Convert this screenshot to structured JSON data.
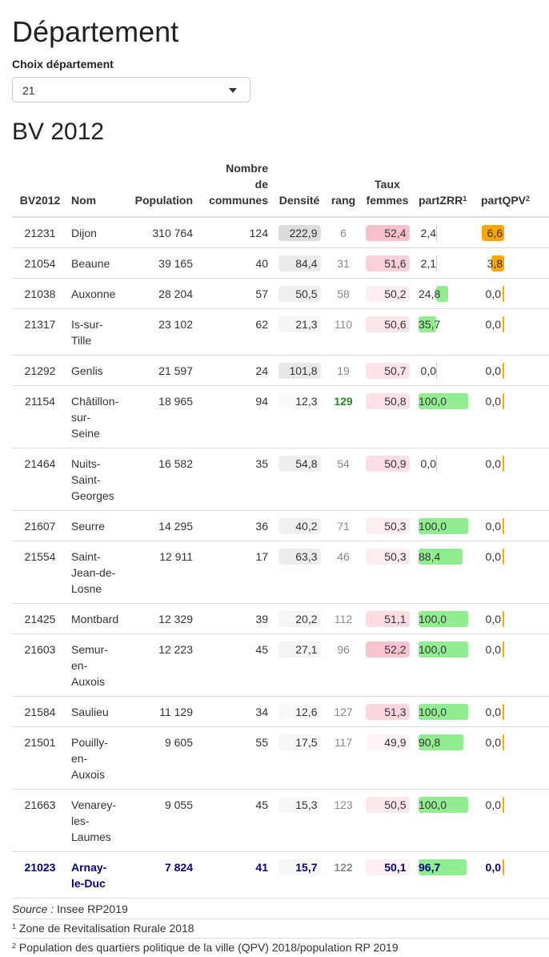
{
  "page_title": "Département",
  "selector": {
    "label": "Choix département",
    "value": "21"
  },
  "section_title": "BV 2012",
  "columns": {
    "bv": "BV2012",
    "nom": "Nom",
    "population": "Population",
    "nb_communes": "Nombre de communes",
    "densite": "Densité",
    "rang": "rang",
    "taux_femmes": "Taux femmes",
    "partZRR": "partZRR",
    "partZRR_sup": "1",
    "partQPV": "partQPV",
    "partQPV_sup": "2"
  },
  "colors": {
    "zrr": "#90EE90",
    "qpv": "#FFA500",
    "dens": "#e0e0e0",
    "fem": "#f8c8d0",
    "last": "#000080",
    "rang_hi": "#228B22"
  },
  "rows": [
    {
      "bv": "21231",
      "nom": "Dijon",
      "population": "310 764",
      "nb": "124",
      "densite": "222,9",
      "rang": "6",
      "femmes": "52,4",
      "zrr": "2,4",
      "zrr_v": 2.4,
      "qpv": "6,6",
      "qpv_v": 6.6
    },
    {
      "bv": "21054",
      "nom": "Beaune",
      "population": "39 165",
      "nb": "40",
      "densite": "84,4",
      "rang": "31",
      "femmes": "51,6",
      "zrr": "2,1",
      "zrr_v": 2.1,
      "qpv": "3,8",
      "qpv_v": 3.8
    },
    {
      "bv": "21038",
      "nom": "Auxonne",
      "population": "28 204",
      "nb": "57",
      "densite": "50,5",
      "rang": "58",
      "femmes": "50,2",
      "zrr": "24,8",
      "zrr_v": 24.8,
      "qpv": "0,0",
      "qpv_v": 0
    },
    {
      "bv": "21317",
      "nom": "Is-sur-Tille",
      "population": "23 102",
      "nb": "62",
      "densite": "21,3",
      "rang": "110",
      "femmes": "50,6",
      "zrr": "35,7",
      "zrr_v": 35.7,
      "qpv": "0,0",
      "qpv_v": 0
    },
    {
      "bv": "21292",
      "nom": "Genlis",
      "population": "21 597",
      "nb": "24",
      "densite": "101,8",
      "rang": "19",
      "femmes": "50,7",
      "zrr": "0,0",
      "zrr_v": 0,
      "qpv": "0,0",
      "qpv_v": 0
    },
    {
      "bv": "21154",
      "nom": "Châtillon-sur-Seine",
      "population": "18 965",
      "nb": "94",
      "densite": "12,3",
      "rang": "129",
      "femmes": "50,8",
      "zrr": "100,0",
      "zrr_v": 100,
      "qpv": "0,0",
      "qpv_v": 0
    },
    {
      "bv": "21464",
      "nom": "Nuits-Saint-Georges",
      "population": "16 582",
      "nb": "35",
      "densite": "54,8",
      "rang": "54",
      "femmes": "50,9",
      "zrr": "0,0",
      "zrr_v": 0,
      "qpv": "0,0",
      "qpv_v": 0
    },
    {
      "bv": "21607",
      "nom": "Seurre",
      "population": "14 295",
      "nb": "36",
      "densite": "40,2",
      "rang": "71",
      "femmes": "50,3",
      "zrr": "100,0",
      "zrr_v": 100,
      "qpv": "0,0",
      "qpv_v": 0
    },
    {
      "bv": "21554",
      "nom": "Saint-Jean-de-Losne",
      "population": "12 911",
      "nb": "17",
      "densite": "63,3",
      "rang": "46",
      "femmes": "50,3",
      "zrr": "88,4",
      "zrr_v": 88.4,
      "qpv": "0,0",
      "qpv_v": 0
    },
    {
      "bv": "21425",
      "nom": "Montbard",
      "population": "12 329",
      "nb": "39",
      "densite": "20,2",
      "rang": "112",
      "femmes": "51,1",
      "zrr": "100,0",
      "zrr_v": 100,
      "qpv": "0,0",
      "qpv_v": 0
    },
    {
      "bv": "21603",
      "nom": "Semur-en-Auxois",
      "population": "12 223",
      "nb": "45",
      "densite": "27,1",
      "rang": "96",
      "femmes": "52,2",
      "zrr": "100,0",
      "zrr_v": 100,
      "qpv": "0,0",
      "qpv_v": 0
    },
    {
      "bv": "21584",
      "nom": "Saulieu",
      "population": "11 129",
      "nb": "34",
      "densite": "12,6",
      "rang": "127",
      "femmes": "51,3",
      "zrr": "100,0",
      "zrr_v": 100,
      "qpv": "0,0",
      "qpv_v": 0
    },
    {
      "bv": "21501",
      "nom": "Pouilly-en-Auxois",
      "population": "9 605",
      "nb": "55",
      "densite": "17,5",
      "rang": "117",
      "femmes": "49,9",
      "zrr": "90,8",
      "zrr_v": 90.8,
      "qpv": "0,0",
      "qpv_v": 0
    },
    {
      "bv": "21663",
      "nom": "Venarey-les-Laumes",
      "population": "9 055",
      "nb": "45",
      "densite": "15,3",
      "rang": "123",
      "femmes": "50,5",
      "zrr": "100,0",
      "zrr_v": 100,
      "qpv": "0,0",
      "qpv_v": 0
    },
    {
      "bv": "21023",
      "nom": "Arnay-le-Duc",
      "population": "7 824",
      "nb": "41",
      "densite": "15,7",
      "rang": "122",
      "femmes": "50,1",
      "zrr": "96,7",
      "zrr_v": 96.7,
      "qpv": "0,0",
      "qpv_v": 0
    }
  ],
  "footer": {
    "source_label": "Source :",
    "source_value": "Insee RP2019",
    "note1_sup": "1",
    "note1": "Zone de Revitalisation Rurale 2018",
    "note2_sup": "2",
    "note2": "Population des quartiers politique de la ville (QPV) 2018/population RP 2019"
  }
}
